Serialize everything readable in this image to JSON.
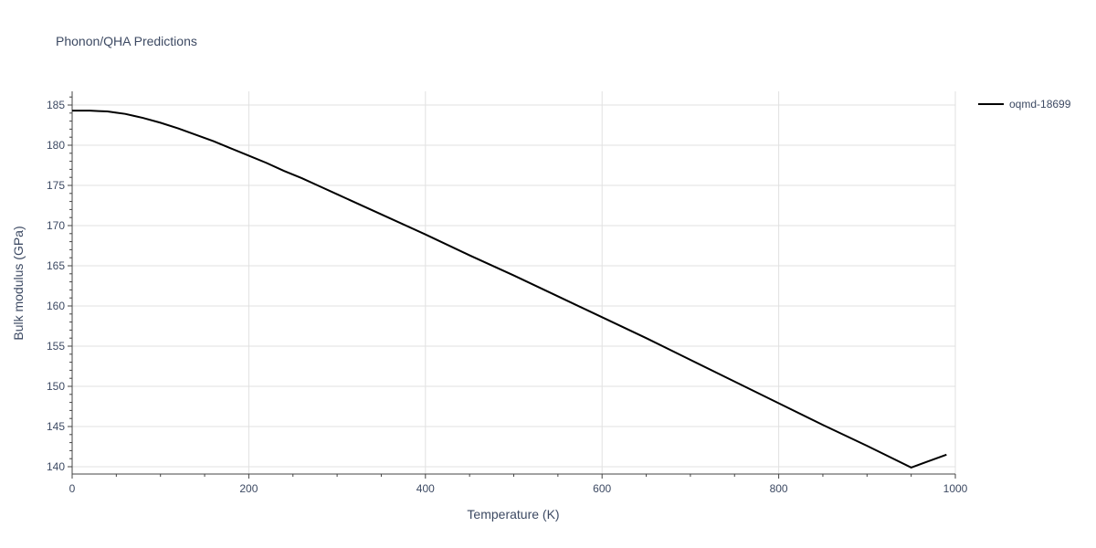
{
  "chart_data": {
    "type": "line",
    "title": "Phonon/QHA Predictions",
    "xlabel": "Temperature (K)",
    "ylabel": "Bulk modulus (GPa)",
    "xlim": [
      0,
      1000
    ],
    "ylim": [
      139.5,
      186.5
    ],
    "x_ticks": [
      0,
      200,
      400,
      600,
      800,
      1000
    ],
    "y_ticks": [
      140,
      145,
      150,
      155,
      160,
      165,
      170,
      175,
      180,
      185
    ],
    "grid": true,
    "legend_position": "top-right",
    "series": [
      {
        "name": "oqmd-18699",
        "color": "#000000",
        "x": [
          0,
          10,
          20,
          30,
          40,
          50,
          60,
          70,
          80,
          100,
          120,
          140,
          160,
          180,
          200,
          220,
          240,
          260,
          280,
          300,
          350,
          400,
          450,
          500,
          550,
          600,
          650,
          700,
          750,
          800,
          850,
          900,
          950,
          990
        ],
        "y": [
          184.3,
          184.3,
          184.3,
          184.25,
          184.2,
          184.05,
          183.9,
          183.65,
          183.4,
          182.8,
          182.1,
          181.3,
          180.5,
          179.6,
          178.7,
          177.8,
          176.8,
          175.9,
          174.9,
          173.9,
          171.4,
          168.9,
          166.3,
          163.8,
          161.2,
          158.6,
          156.0,
          153.3,
          150.6,
          147.9,
          145.2,
          142.6,
          139.9,
          141.5
        ]
      }
    ]
  }
}
